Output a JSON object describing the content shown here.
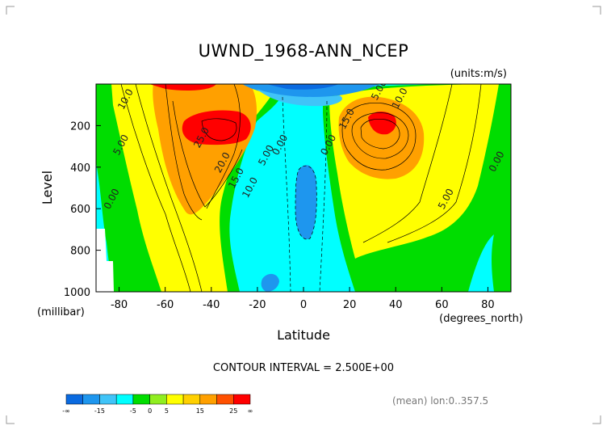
{
  "chart_data": {
    "type": "contour",
    "title": "UWND_1968-ANN_NCEP",
    "units_label": "(units:m/s)",
    "xlabel": "Latitude",
    "x_units_label": "(degrees_north)",
    "ylabel": "Level",
    "y_units_label": "(millibar)",
    "xlim": [
      -90,
      90
    ],
    "ylim": [
      1000,
      0
    ],
    "x_ticks": [
      -80,
      -60,
      -40,
      -20,
      0,
      20,
      40,
      60,
      80
    ],
    "y_ticks": [
      200,
      400,
      600,
      800,
      1000
    ],
    "contour_interval_text": "CONTOUR INTERVAL = 2.500E+00",
    "footer_text": "(mean) lon:0..357.5",
    "colorbar": {
      "labels": [
        "-∞",
        "-15",
        "-5",
        "0",
        "5",
        "15",
        "25",
        "∞"
      ],
      "colors": [
        "#0a6ae0",
        "#1e96ee",
        "#40c4f8",
        "#00ffff",
        "#00dd00",
        "#90ee20",
        "#ffff00",
        "#ffd000",
        "#ffa000",
        "#ff5000",
        "#ff0000"
      ]
    },
    "contour_labels": [
      {
        "text": "10.0",
        "lat": -76,
        "level": 80
      },
      {
        "text": "5.00",
        "lat": -78,
        "level": 300
      },
      {
        "text": "0.00",
        "lat": -82,
        "level": 560
      },
      {
        "text": "25.0",
        "lat": -43,
        "level": 265
      },
      {
        "text": "20.0",
        "lat": -34,
        "level": 385
      },
      {
        "text": "15.0",
        "lat": -28,
        "level": 460
      },
      {
        "text": "10.0",
        "lat": -22,
        "level": 505
      },
      {
        "text": "5.00",
        "lat": -15,
        "level": 350
      },
      {
        "text": "0.00",
        "lat": -9,
        "level": 300
      },
      {
        "text": "0.00",
        "lat": 12,
        "level": 300
      },
      {
        "text": "15.0",
        "lat": 20,
        "level": 175
      },
      {
        "text": "5.00",
        "lat": 34,
        "level": 35
      },
      {
        "text": "10.0",
        "lat": 43,
        "level": 75
      },
      {
        "text": "5.00",
        "lat": 63,
        "level": 560
      },
      {
        "text": "0.00",
        "lat": 85,
        "level": 380
      }
    ]
  }
}
